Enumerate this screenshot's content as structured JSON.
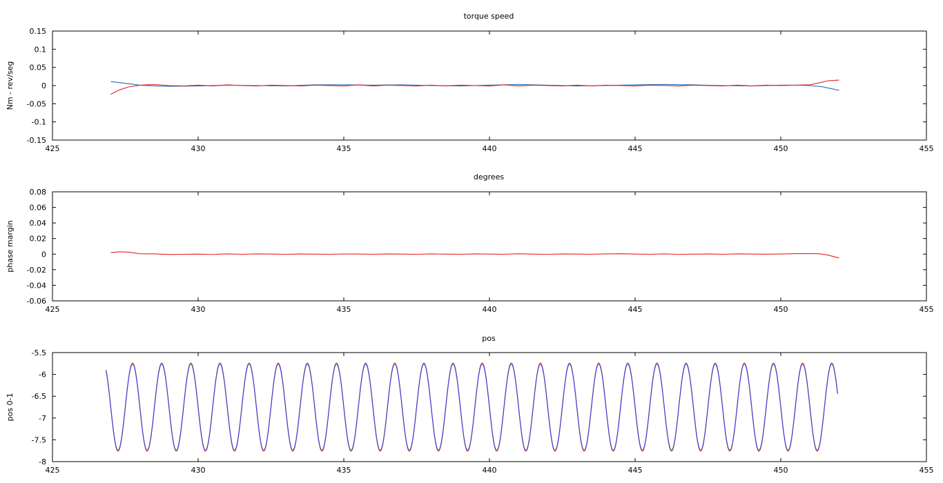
{
  "chart_data": [
    {
      "type": "line",
      "title": "torque  speed",
      "xlabel": "",
      "ylabel": "Nm - rev/seg",
      "xlim": [
        425,
        455
      ],
      "ylim": [
        -0.15,
        0.15
      ],
      "xticks": [
        "425",
        "430",
        "435",
        "440",
        "445",
        "450",
        "455"
      ],
      "yticks": [
        "0.15",
        "0.1",
        "0.05",
        "0",
        "-0.05",
        "-0.1",
        "-0.15"
      ],
      "grid": false,
      "series": [
        {
          "color": "#1f6fc0",
          "x": [
            427.0,
            427.5,
            428.0,
            428.5,
            429.0,
            430.0,
            431.0,
            432.0,
            433.0,
            434.0,
            435.0,
            436.0,
            437.0,
            438.0,
            439.0,
            440.0,
            441.0,
            442.0,
            443.0,
            444.0,
            445.0,
            446.0,
            447.0,
            448.0,
            449.0,
            450.0,
            450.5,
            451.0,
            451.4,
            451.7,
            452.0
          ],
          "y": [
            0.011,
            0.006,
            0.001,
            -0.001,
            -0.002,
            -0.001,
            0.001,
            0.0,
            -0.001,
            0.002,
            0.002,
            0.001,
            0.002,
            0.0,
            -0.001,
            0.001,
            0.003,
            0.001,
            -0.001,
            0.0,
            0.002,
            0.003,
            0.002,
            0.0,
            -0.001,
            0.001,
            0.001,
            0.0,
            -0.003,
            -0.008,
            -0.013
          ]
        },
        {
          "color": "#e8201c",
          "x": [
            427.0,
            427.3,
            427.6,
            428.0,
            428.5,
            429.0,
            429.5,
            430.0,
            430.5,
            431.0,
            431.5,
            432.0,
            432.5,
            433.0,
            433.5,
            434.0,
            434.5,
            435.0,
            435.5,
            436.0,
            436.5,
            437.0,
            437.5,
            438.0,
            438.5,
            439.0,
            439.5,
            440.0,
            440.5,
            441.0,
            441.5,
            442.0,
            442.5,
            443.0,
            443.5,
            444.0,
            444.5,
            445.0,
            445.5,
            446.0,
            446.5,
            447.0,
            447.5,
            448.0,
            448.5,
            449.0,
            449.5,
            450.0,
            450.5,
            451.0,
            451.3,
            451.6,
            452.0
          ],
          "y": [
            -0.024,
            -0.012,
            -0.004,
            0.001,
            0.003,
            0.0,
            -0.001,
            0.001,
            -0.001,
            0.002,
            0.0,
            -0.001,
            0.001,
            0.0,
            -0.001,
            0.001,
            0.0,
            -0.001,
            0.002,
            -0.001,
            0.001,
            0.0,
            -0.001,
            0.001,
            -0.001,
            0.001,
            0.0,
            -0.001,
            0.002,
            -0.001,
            0.001,
            0.0,
            -0.001,
            0.001,
            -0.001,
            0.001,
            0.0,
            -0.001,
            0.001,
            0.0,
            -0.001,
            0.001,
            0.0,
            -0.001,
            0.001,
            -0.001,
            0.001,
            0.0,
            0.001,
            0.002,
            0.007,
            0.013,
            0.015
          ]
        }
      ]
    },
    {
      "type": "line",
      "title": "degrees",
      "xlabel": "",
      "ylabel": "phase margin",
      "xlim": [
        425,
        455
      ],
      "ylim": [
        -0.06,
        0.08
      ],
      "xticks": [
        "425",
        "430",
        "435",
        "440",
        "445",
        "450",
        "455"
      ],
      "yticks": [
        "0.08",
        "0.06",
        "0.04",
        "0.02",
        "0",
        "-0.02",
        "-0.04",
        "-0.06"
      ],
      "grid": false,
      "series": [
        {
          "color": "#e8201c",
          "x": [
            427.0,
            427.3,
            427.6,
            428.0,
            428.5,
            429.0,
            429.5,
            430.0,
            430.5,
            431.0,
            431.5,
            432.0,
            432.5,
            433.0,
            433.5,
            434.0,
            434.5,
            435.0,
            435.5,
            436.0,
            436.5,
            437.0,
            437.5,
            438.0,
            438.5,
            439.0,
            439.5,
            440.0,
            440.5,
            441.0,
            441.5,
            442.0,
            442.5,
            443.0,
            443.5,
            444.0,
            444.5,
            445.0,
            445.5,
            446.0,
            446.5,
            447.0,
            447.5,
            448.0,
            448.5,
            449.0,
            449.5,
            450.0,
            450.5,
            451.0,
            451.3,
            451.6,
            452.0
          ],
          "y": [
            0.002,
            0.003,
            0.0025,
            0.0005,
            0.0003,
            -0.0005,
            -0.0002,
            0.0,
            -0.0004,
            0.0003,
            -0.0002,
            0.0003,
            0.0001,
            -0.0003,
            0.0002,
            0.0,
            -0.0002,
            0.0002,
            0.0001,
            -0.0002,
            0.0002,
            0.0001,
            -0.0002,
            0.0003,
            0.0,
            -0.0002,
            0.0003,
            0.0001,
            -0.0002,
            0.0004,
            0.0,
            -0.0003,
            0.0002,
            0.0001,
            -0.0002,
            0.0003,
            0.0005,
            0.0001,
            -0.0002,
            0.0003,
            -0.0003,
            0.0,
            0.0002,
            -0.0002,
            0.0003,
            0.0001,
            -0.0001,
            0.0002,
            0.0006,
            0.0006,
            0.0005,
            -0.001,
            -0.005
          ]
        }
      ]
    },
    {
      "type": "line",
      "title": "pos",
      "xlabel": "",
      "ylabel": "pos 0-1",
      "xlim": [
        425,
        455
      ],
      "ylim": [
        -8,
        -5.5
      ],
      "xticks": [
        "425",
        "430",
        "435",
        "440",
        "445",
        "450",
        "455"
      ],
      "yticks": [
        "-5.5",
        "-6",
        "-6.5",
        "-7",
        "-7.5",
        "-8"
      ],
      "grid": false,
      "waveform": {
        "type": "sine",
        "x_start": 426.84,
        "x_end": 451.95,
        "period": 1.0,
        "max": -5.76,
        "min": -7.74,
        "first_peak_x": 427.75
      },
      "series": [
        {
          "color": "#ff7a2a",
          "peak_offset": 0.025
        },
        {
          "color": "#3a3fd8",
          "peak_offset": 0.0
        }
      ]
    }
  ]
}
